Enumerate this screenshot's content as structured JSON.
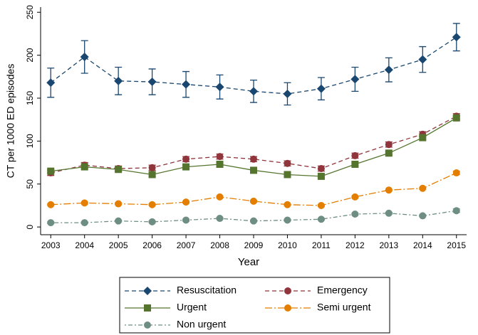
{
  "chart_data": {
    "type": "line",
    "x_label": "Year",
    "y_label": "CT per 1000 ED episodes",
    "x": [
      2003,
      2004,
      2005,
      2006,
      2007,
      2008,
      2009,
      2010,
      2011,
      2012,
      2013,
      2014,
      2015
    ],
    "xlim": [
      2002.7,
      2015.3
    ],
    "xticks": [
      2003,
      2004,
      2005,
      2006,
      2007,
      2008,
      2009,
      2010,
      2011,
      2012,
      2013,
      2014,
      2015
    ],
    "ylim": [
      -9,
      256
    ],
    "yticks": [
      0,
      50,
      100,
      150,
      200,
      250
    ],
    "series": [
      {
        "name": "Resuscitation",
        "color": "#1a476f",
        "marker": "diamond",
        "dash": "6,4",
        "values": [
          168,
          198,
          170,
          169,
          166,
          163,
          158,
          155,
          161,
          172,
          183,
          195,
          221
        ],
        "errors": [
          17,
          19,
          16,
          15,
          15,
          14,
          13,
          13,
          13,
          14,
          14,
          15,
          16
        ]
      },
      {
        "name": "Emergency",
        "color": "#90353b",
        "marker": "circle",
        "dash": "6,4",
        "values": [
          63,
          72,
          68,
          69,
          79,
          82,
          79,
          74,
          68,
          83,
          96,
          108,
          129
        ],
        "errors": [
          3,
          3,
          3,
          3,
          3,
          3,
          3,
          3,
          3,
          3,
          3,
          3,
          3
        ]
      },
      {
        "name": "Urgent",
        "color": "#55752f",
        "marker": "square",
        "dash": "",
        "values": [
          65,
          70,
          67,
          61,
          70,
          73,
          66,
          61,
          59,
          73,
          86,
          104,
          127
        ],
        "errors": [
          2,
          2,
          2,
          2,
          2,
          2,
          2,
          2,
          2,
          2,
          2,
          2,
          2
        ]
      },
      {
        "name": "Semi urgent",
        "color": "#e37e00",
        "marker": "circle",
        "dash": "10,3,2,3",
        "values": [
          26,
          28,
          27,
          26,
          29,
          35,
          30,
          26,
          25,
          35,
          43,
          45,
          63
        ],
        "errors": [
          1,
          1,
          1,
          1,
          1,
          1,
          1,
          1,
          1,
          1,
          1,
          1,
          2
        ]
      },
      {
        "name": "Non urgent",
        "color": "#6e8e84",
        "marker": "circle",
        "dash": "2,3,6,3",
        "values": [
          5,
          5,
          7,
          6,
          8,
          10,
          7,
          8,
          9,
          15,
          16,
          13,
          19
        ],
        "errors": [
          1,
          1,
          1,
          1,
          1,
          1,
          1,
          1,
          1,
          1,
          1,
          1,
          2
        ]
      }
    ]
  }
}
